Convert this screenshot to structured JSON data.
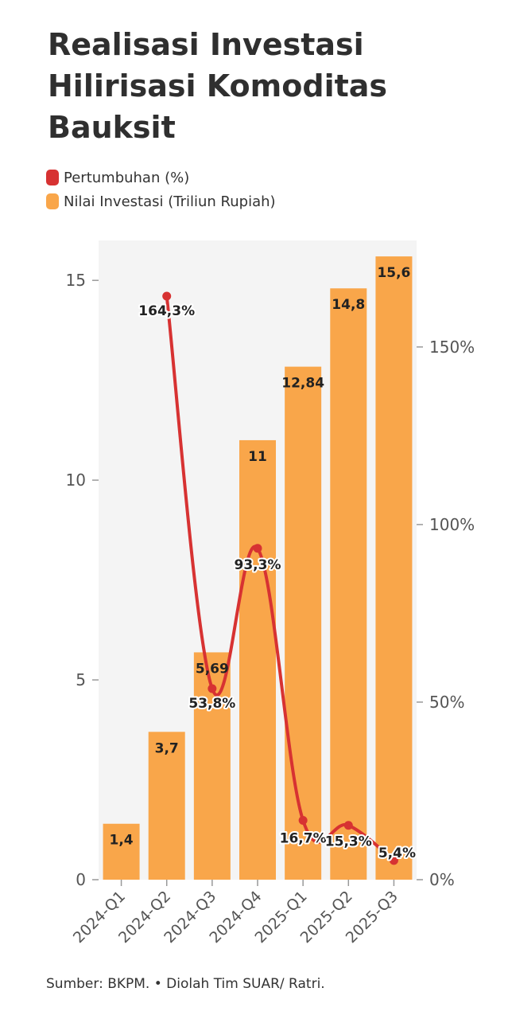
{
  "title": "Realisasi Investasi Hilirisasi Komoditas Bauksit",
  "legend": [
    {
      "label": "Pertumbuhan (%)",
      "color": "#d73232"
    },
    {
      "label": "Nilai Investasi (Triliun Rupiah)",
      "color": "#f9a64a"
    }
  ],
  "source": "Sumber: BKPM. • Diolah Tim SUAR/ Ratri.",
  "chart_data": {
    "type": "bar",
    "categories": [
      "2024-Q1",
      "2024-Q2",
      "2024-Q3",
      "2024-Q4",
      "2025-Q1",
      "2025-Q2",
      "2025-Q3"
    ],
    "series": [
      {
        "name": "Nilai Investasi (Triliun Rupiah)",
        "type": "bar",
        "axis": "left",
        "color": "#f9a64a",
        "values": [
          1.4,
          3.7,
          5.69,
          11,
          12.84,
          14.8,
          15.6
        ],
        "labels": [
          "1,4",
          "3,7",
          "5,69",
          "11",
          "12,84",
          "14,8",
          "15,6"
        ]
      },
      {
        "name": "Pertumbuhan (%)",
        "type": "line",
        "axis": "right",
        "color": "#d73232",
        "values": [
          null,
          164.3,
          53.8,
          93.3,
          16.7,
          15.3,
          5.4
        ],
        "labels": [
          "",
          "164,3%",
          "53,8%",
          "93,3%",
          "16,7%",
          "15,3%",
          "5,4%"
        ]
      }
    ],
    "left_axis": {
      "ylim": [
        0,
        16
      ],
      "ticks": [
        0,
        5,
        10,
        15
      ],
      "tick_labels": [
        "0",
        "5",
        "10",
        "15"
      ]
    },
    "right_axis": {
      "ylim": [
        0,
        0.35
      ],
      "ticks": [
        0,
        0.5,
        1.0,
        1.5
      ],
      "tick_labels": [
        "0%",
        "50%",
        "100%",
        "150%"
      ]
    },
    "legend_position": "top-left",
    "grid": false
  }
}
